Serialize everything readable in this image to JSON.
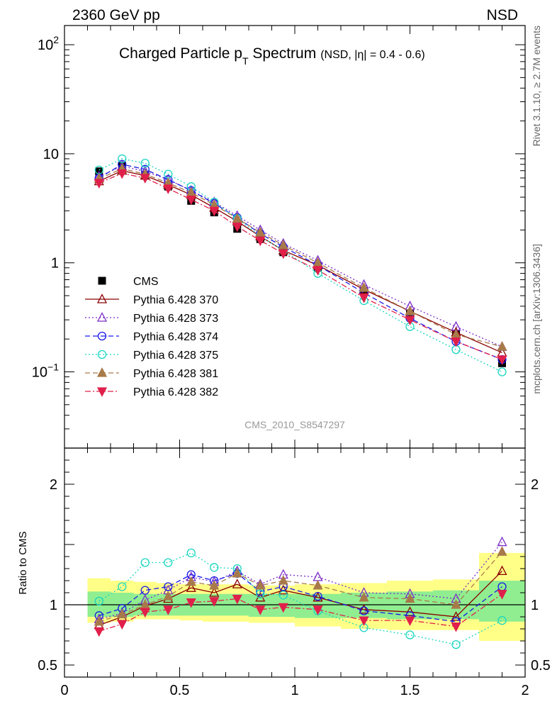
{
  "header": {
    "left": "2360 GeV pp",
    "right": "NSD"
  },
  "side_labels": {
    "rivet": "Rivet 3.1.10, ≥ 2.7M events",
    "mcplots": "mcplots.cern.ch [arXiv:1306.3436]"
  },
  "chart_data": [
    {
      "type": "scatter",
      "panel": "main",
      "title_main": "Charged Particle p",
      "title_sub": "T",
      "title_rest": " Spectrum",
      "title_small": "(NSD, |η| = 0.4 - 0.6)",
      "watermark": "CMS_2010_S8547297",
      "yscale": "log",
      "ylim": [
        0.02,
        150
      ],
      "xlim": [
        0,
        2
      ],
      "ytick_labels": [
        {
          "v": 100,
          "base": "10",
          "exp": "2"
        },
        {
          "v": 10,
          "base": "10",
          "exp": ""
        },
        {
          "v": 1,
          "base": "1",
          "exp": ""
        },
        {
          "v": 0.1,
          "base": "10",
          "exp": "−1"
        }
      ],
      "x": [
        0.15,
        0.25,
        0.35,
        0.45,
        0.55,
        0.65,
        0.75,
        0.85,
        0.95,
        1.1,
        1.3,
        1.5,
        1.7,
        1.9
      ],
      "series": [
        {
          "name": "CMS",
          "color": "#000000",
          "marker": "square-filled",
          "line": "none",
          "values": [
            6.9,
            7.8,
            6.4,
            5.0,
            3.7,
            2.9,
            2.05,
            1.65,
            1.25,
            0.9,
            0.55,
            0.34,
            0.22,
            0.12
          ]
        },
        {
          "name": "Pythia 6.428 370",
          "color": "#8b0000",
          "marker": "triangle-open",
          "line": "solid",
          "values": [
            5.6,
            7.0,
            6.3,
            5.2,
            4.2,
            3.2,
            2.4,
            1.75,
            1.3,
            0.95,
            0.57,
            0.36,
            0.23,
            0.15
          ]
        },
        {
          "name": "Pythia 6.428 373",
          "color": "#7b2bc8",
          "marker": "triangle-open",
          "line": "dotted",
          "values": [
            6.2,
            7.7,
            6.9,
            5.8,
            4.6,
            3.6,
            2.7,
            2.0,
            1.5,
            1.05,
            0.63,
            0.4,
            0.26,
            0.17
          ]
        },
        {
          "name": "Pythia 6.428 374",
          "color": "#1a1ae6",
          "marker": "circle-open",
          "line": "dashed",
          "values": [
            6.0,
            8.0,
            7.2,
            5.8,
            4.6,
            3.5,
            2.6,
            1.85,
            1.4,
            0.95,
            0.53,
            0.31,
            0.19,
            0.13
          ]
        },
        {
          "name": "Pythia 6.428 375",
          "color": "#19d6c0",
          "marker": "circle-open",
          "line": "dotted",
          "values": [
            7.1,
            9.0,
            8.2,
            6.5,
            5.0,
            3.6,
            2.55,
            1.75,
            1.3,
            0.8,
            0.45,
            0.26,
            0.16,
            0.1
          ]
        },
        {
          "name": "Pythia 6.428 381",
          "color": "#a87a4a",
          "marker": "triangle-up-filled",
          "line": "dashed",
          "values": [
            5.9,
            7.3,
            6.5,
            5.4,
            4.4,
            3.4,
            2.55,
            1.9,
            1.45,
            1.0,
            0.59,
            0.36,
            0.22,
            0.17
          ]
        },
        {
          "name": "Pythia 6.428 382",
          "color": "#e0204a",
          "marker": "triangle-down-filled",
          "line": "dashdot",
          "values": [
            5.4,
            6.6,
            6.0,
            4.8,
            3.8,
            3.0,
            2.15,
            1.6,
            1.22,
            0.86,
            0.48,
            0.3,
            0.19,
            0.13
          ]
        }
      ]
    },
    {
      "type": "line",
      "panel": "ratio",
      "ylabel": "Ratio to CMS",
      "ylim": [
        0.4,
        2.3
      ],
      "xlim": [
        0,
        2
      ],
      "ytick_labels": [
        {
          "v": 2,
          "label": "2"
        },
        {
          "v": 1,
          "label": "1"
        },
        {
          "v": 0.5,
          "label": "0.5"
        }
      ],
      "xtick_labels": [
        {
          "v": 0,
          "label": "0"
        },
        {
          "v": 0.5,
          "label": "0.5"
        },
        {
          "v": 1,
          "label": "1"
        },
        {
          "v": 1.5,
          "label": "1.5"
        },
        {
          "v": 2,
          "label": "2"
        }
      ],
      "bands": {
        "edges": [
          0.1,
          0.2,
          0.3,
          0.4,
          0.5,
          0.6,
          0.7,
          0.8,
          0.9,
          1.0,
          1.2,
          1.4,
          1.6,
          1.8,
          2.0
        ],
        "yellow": [
          [
            0.85,
            1.22
          ],
          [
            0.86,
            1.2
          ],
          [
            0.88,
            1.19
          ],
          [
            0.88,
            1.18
          ],
          [
            0.87,
            1.17
          ],
          [
            0.86,
            1.17
          ],
          [
            0.86,
            1.17
          ],
          [
            0.85,
            1.16
          ],
          [
            0.85,
            1.16
          ],
          [
            0.82,
            1.17
          ],
          [
            0.8,
            1.18
          ],
          [
            0.79,
            1.2
          ],
          [
            0.79,
            1.21
          ],
          [
            0.7,
            1.43
          ]
        ],
        "green": [
          [
            0.9,
            1.11
          ],
          [
            0.9,
            1.1
          ],
          [
            0.91,
            1.09
          ],
          [
            0.91,
            1.09
          ],
          [
            0.91,
            1.09
          ],
          [
            0.91,
            1.09
          ],
          [
            0.91,
            1.09
          ],
          [
            0.9,
            1.09
          ],
          [
            0.9,
            1.09
          ],
          [
            0.89,
            1.09
          ],
          [
            0.89,
            1.1
          ],
          [
            0.88,
            1.11
          ],
          [
            0.88,
            1.12
          ],
          [
            0.86,
            1.2
          ]
        ],
        "yellow_color": "#ffff88",
        "green_color": "#90ee90"
      },
      "series": [
        {
          "name": "Pythia 6.428 370",
          "values": [
            0.83,
            0.9,
            0.99,
            1.05,
            1.14,
            1.1,
            1.17,
            1.06,
            1.12,
            1.06,
            0.96,
            0.94,
            0.9,
            1.28
          ]
        },
        {
          "name": "Pythia 6.428 373",
          "values": [
            0.88,
            0.93,
            1.04,
            1.12,
            1.23,
            1.19,
            1.28,
            1.17,
            1.25,
            1.23,
            1.1,
            1.09,
            1.05,
            1.52
          ]
        },
        {
          "name": "Pythia 6.428 374",
          "values": [
            0.91,
            0.97,
            1.12,
            1.15,
            1.25,
            1.2,
            1.26,
            1.11,
            1.15,
            1.07,
            0.95,
            0.91,
            0.86,
            1.15
          ]
        },
        {
          "name": "Pythia 6.428 375",
          "values": [
            1.03,
            1.15,
            1.35,
            1.35,
            1.43,
            1.31,
            1.3,
            1.09,
            1.08,
            0.95,
            0.81,
            0.75,
            0.67,
            0.87
          ]
        },
        {
          "name": "Pythia 6.428 381",
          "values": [
            0.86,
            0.92,
            1.0,
            1.07,
            1.19,
            1.16,
            1.26,
            1.16,
            1.2,
            1.16,
            1.06,
            1.05,
            1.0,
            1.44
          ]
        },
        {
          "name": "Pythia 6.428 382",
          "values": [
            0.78,
            0.84,
            0.94,
            0.96,
            1.02,
            1.03,
            1.05,
            0.96,
            0.98,
            0.96,
            0.87,
            0.87,
            0.82,
            1.09
          ]
        }
      ]
    }
  ]
}
